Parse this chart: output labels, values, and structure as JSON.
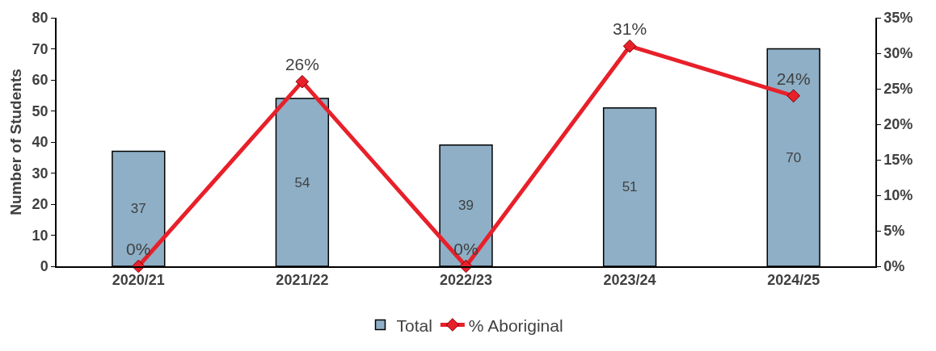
{
  "chart_data": {
    "type": "bar",
    "categories": [
      "2020/21",
      "2021/22",
      "2022/23",
      "2023/24",
      "2024/25"
    ],
    "ylabel": "Number of Students",
    "ylim": [
      0,
      80
    ],
    "yticks": [
      0,
      10,
      20,
      30,
      40,
      50,
      60,
      70,
      80
    ],
    "y2lim": [
      0,
      35
    ],
    "y2ticks": [
      {
        "value": 0,
        "label": "0%"
      },
      {
        "value": 5,
        "label": "5%"
      },
      {
        "value": 10,
        "label": "10%"
      },
      {
        "value": 15,
        "label": "15%"
      },
      {
        "value": 20,
        "label": "20%"
      },
      {
        "value": 25,
        "label": "25%"
      },
      {
        "value": 30,
        "label": "30%"
      },
      {
        "value": 35,
        "label": "35%"
      }
    ],
    "series": [
      {
        "name": "Total",
        "color": "#8eafc6",
        "values": [
          37,
          54,
          39,
          51,
          70
        ],
        "value_labels": [
          "37",
          "54",
          "39",
          "51",
          "70"
        ]
      },
      {
        "name": "% Aboriginal",
        "type": "line",
        "axis": "y2",
        "color": "#e8202a",
        "marker": "diamond",
        "values": [
          0,
          26,
          0,
          31,
          24
        ],
        "value_labels": [
          "0%",
          "26%",
          "0%",
          "31%",
          "24%"
        ]
      }
    ],
    "grid": false,
    "legend": "bottom"
  }
}
